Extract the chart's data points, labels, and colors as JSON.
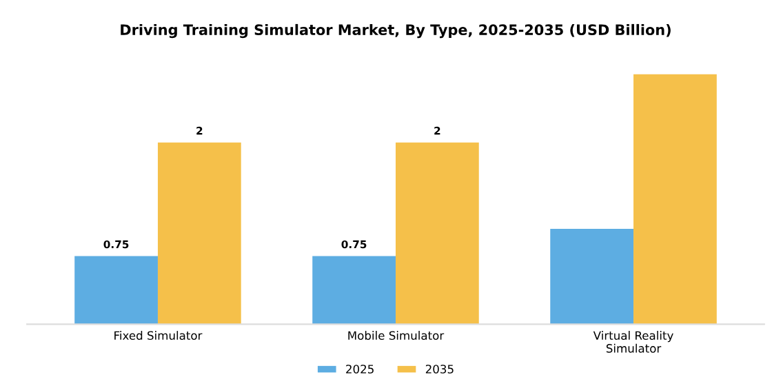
{
  "chart_data": {
    "type": "bar",
    "title": "Driving Training Simulator Market, By Type, 2025-2035 (USD Billion)",
    "categories": [
      "Fixed Simulator",
      "Mobile Simulator",
      "Virtual Reality\nSimulator"
    ],
    "series": [
      {
        "name": "2025",
        "color": "#5dade2",
        "values": [
          0.75,
          0.75,
          1.05
        ],
        "value_labels": [
          "0.75",
          "0.75",
          null
        ]
      },
      {
        "name": "2035",
        "color": "#f5c04a",
        "values": [
          2,
          2,
          2.75
        ],
        "value_labels": [
          "2",
          "2",
          null
        ]
      }
    ],
    "legend": "bottom",
    "grid": false
  }
}
